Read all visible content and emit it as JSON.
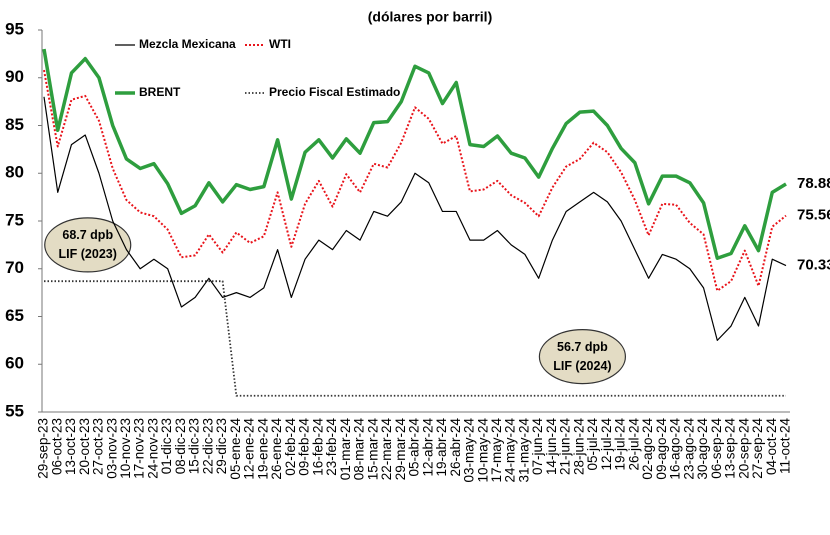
{
  "chart_data": {
    "type": "line",
    "title": "(dólares por barril)",
    "categories": [
      "29-sep-23",
      "06-oct-23",
      "13-oct-23",
      "20-oct-23",
      "27-oct-23",
      "03-nov-23",
      "10-nov-23",
      "17-nov-23",
      "24-nov-23",
      "01-dic-23",
      "08-dic-23",
      "15-dic-23",
      "22-dic-23",
      "29-dic-23",
      "05-ene-24",
      "12-ene-24",
      "19-ene-24",
      "26-ene-24",
      "02-feb-24",
      "09-feb-24",
      "16-feb-24",
      "23-feb-24",
      "01-mar-24",
      "08-mar-24",
      "15-mar-24",
      "22-mar-24",
      "29-mar-24",
      "05-abr-24",
      "12-abr-24",
      "19-abr-24",
      "26-abr-24",
      "03-may-24",
      "10-may-24",
      "17-may-24",
      "24-may-24",
      "31-may-24",
      "07-jun-24",
      "14-jun-24",
      "21-jun-24",
      "28-jun-24",
      "05-jul-24",
      "12-jul-24",
      "19-jul-24",
      "26-jul-24",
      "02-ago-24",
      "09-ago-24",
      "16-ago-24",
      "23-ago-24",
      "30-ago-24",
      "06-sep-24",
      "13-sep-24",
      "20-sep-24",
      "27-sep-24",
      "04-oct-24",
      "11-oct-24"
    ],
    "series": [
      {
        "name": "Mezcla Mexicana",
        "color": "#000000",
        "style": "thin",
        "values": [
          88,
          78,
          83,
          84,
          80,
          75,
          72,
          70,
          71,
          70,
          66,
          67,
          69,
          67,
          67.5,
          67,
          68,
          72,
          67,
          71,
          73,
          72,
          74,
          73,
          76,
          75.5,
          77,
          80,
          79,
          76,
          76,
          73,
          73,
          74,
          72.5,
          71.5,
          69,
          73,
          76,
          77,
          78,
          77,
          75,
          72,
          69,
          71.5,
          71,
          70,
          68,
          62.5,
          64,
          67,
          64,
          71,
          70.33
        ]
      },
      {
        "name": "WTI",
        "color": "#e8141b",
        "style": "dotted",
        "values": [
          90.8,
          82.8,
          87.7,
          88.1,
          85.5,
          80.5,
          77.2,
          75.9,
          75.5,
          74.1,
          71.2,
          71.4,
          73.6,
          71.7,
          73.8,
          72.7,
          73.4,
          78,
          72.3,
          76.8,
          79.2,
          76.5,
          79.9,
          78,
          81,
          80.6,
          83.2,
          86.9,
          85.7,
          83.1,
          83.9,
          78.1,
          78.3,
          79.2,
          77.7,
          76.9,
          75.5,
          78.5,
          80.7,
          81.5,
          83.2,
          82.2,
          80.1,
          77.2,
          73.5,
          76.8,
          76.7,
          74.8,
          73.6,
          67.7,
          68.7,
          71.9,
          68.2,
          74.4,
          75.56
        ]
      },
      {
        "name": "BRENT",
        "color": "#2e9e3e",
        "style": "thick",
        "values": [
          93,
          84.5,
          90.5,
          92,
          90,
          85,
          81.5,
          80.5,
          81,
          78.9,
          75.8,
          76.6,
          79,
          77,
          78.8,
          78.3,
          78.6,
          83.5,
          77.3,
          82.2,
          83.5,
          81.6,
          83.6,
          82.1,
          85.3,
          85.4,
          87.5,
          91.2,
          90.5,
          87.3,
          89.5,
          83,
          82.8,
          83.9,
          82.1,
          81.6,
          79.6,
          82.6,
          85.2,
          86.4,
          86.5,
          85,
          82.6,
          81.1,
          76.8,
          79.7,
          79.7,
          79,
          76.9,
          71.1,
          71.6,
          74.5,
          71.9,
          78,
          78.88
        ]
      },
      {
        "name": "Precio Fiscal Estimado",
        "color": "#333333",
        "style": "fiscal",
        "values": [
          68.7,
          68.7,
          68.7,
          68.7,
          68.7,
          68.7,
          68.7,
          68.7,
          68.7,
          68.7,
          68.7,
          68.7,
          68.7,
          68.7,
          56.7,
          56.7,
          56.7,
          56.7,
          56.7,
          56.7,
          56.7,
          56.7,
          56.7,
          56.7,
          56.7,
          56.7,
          56.7,
          56.7,
          56.7,
          56.7,
          56.7,
          56.7,
          56.7,
          56.7,
          56.7,
          56.7,
          56.7,
          56.7,
          56.7,
          56.7,
          56.7,
          56.7,
          56.7,
          56.7,
          56.7,
          56.7,
          56.7,
          56.7,
          56.7,
          56.7,
          56.7,
          56.7,
          56.7,
          56.7,
          56.7
        ]
      }
    ],
    "end_labels": [
      0,
      1,
      2
    ],
    "annotations": [
      {
        "lines": [
          "68.7 dpb",
          "LIF (2023)"
        ],
        "at": 1,
        "value": 72.5
      },
      {
        "lines": [
          "56.7 dpb",
          "LIF (2024)"
        ],
        "at": 37,
        "value": 60.8
      }
    ],
    "ylim": [
      55,
      95
    ],
    "yticks": [
      55,
      60,
      65,
      70,
      75,
      80,
      85,
      90,
      95
    ],
    "grid": false,
    "legend": "top-left"
  }
}
